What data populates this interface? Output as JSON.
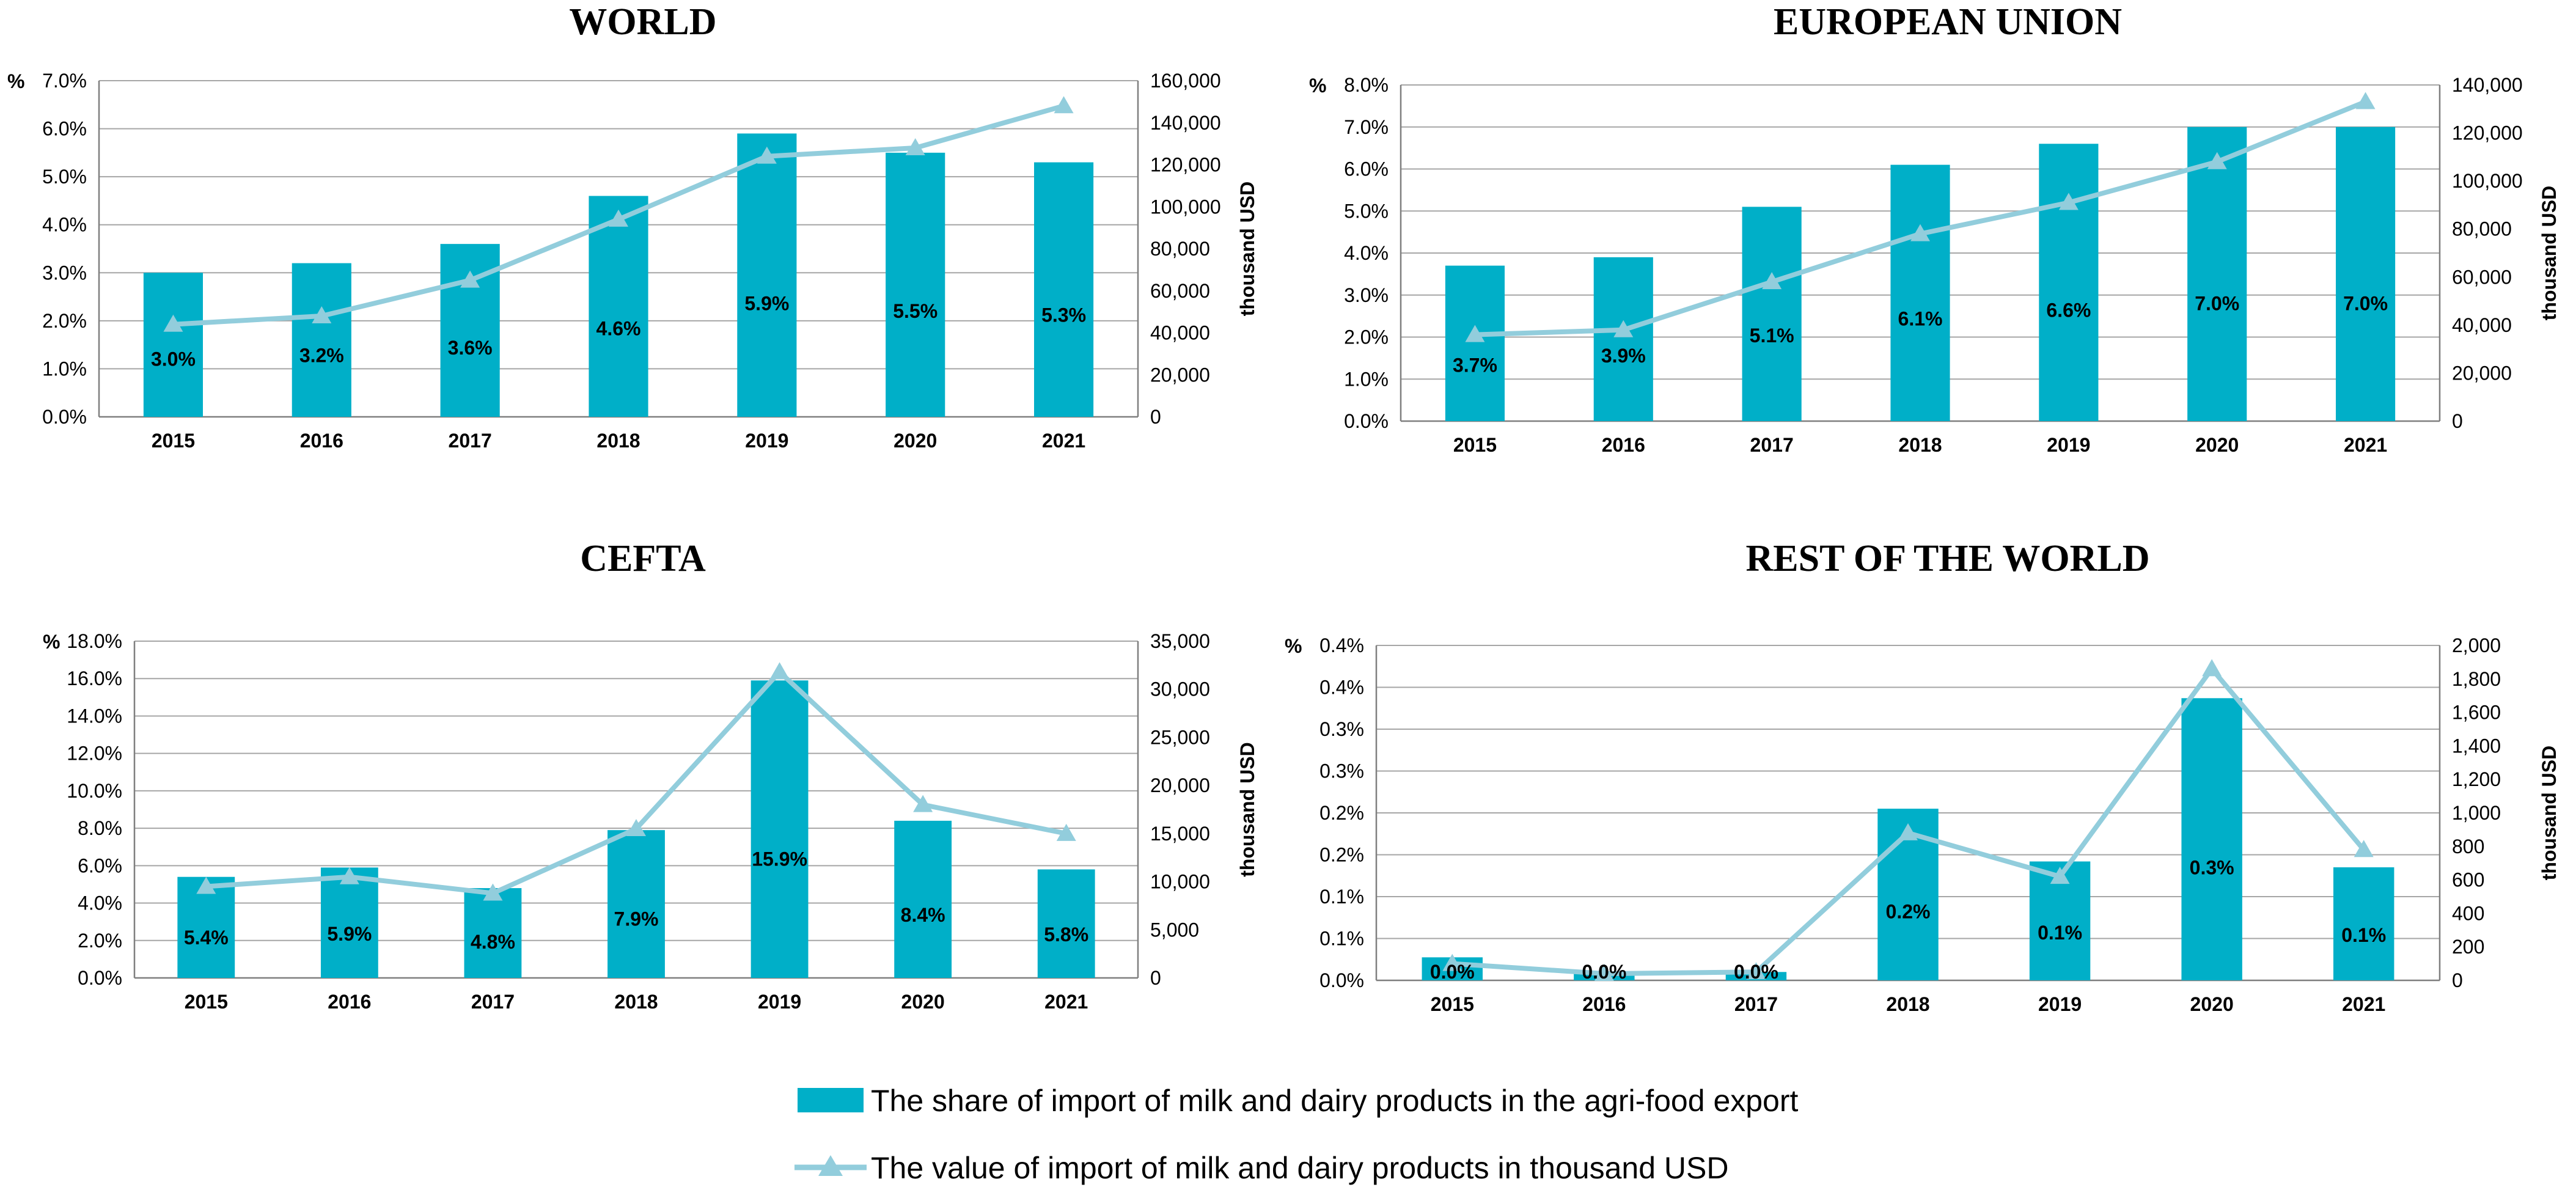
{
  "legend": {
    "bars_label": "The share of import of milk and dairy products in the agri-food export",
    "line_label": "The value of import of milk and dairy products in thousand USD"
  },
  "colors": {
    "bar": "#00AFC8",
    "line": "#92CDDC",
    "grid": "#A6A6A6",
    "axis": "#7F7F7F"
  },
  "chart_data": [
    {
      "type": "bar",
      "title": "WORLD",
      "categories": [
        "2015",
        "2016",
        "2017",
        "2018",
        "2019",
        "2020",
        "2021"
      ],
      "series": [
        {
          "name": "The share of import of milk and dairy products in the agri-food export",
          "axis": "left",
          "values": [
            3.0,
            3.2,
            3.6,
            4.6,
            5.9,
            5.5,
            5.3
          ],
          "labels": [
            "3.0%",
            "3.2%",
            "3.6%",
            "4.6%",
            "5.9%",
            "5.5%",
            "5.3%"
          ]
        },
        {
          "name": "The value of import of milk and dairy products in thousand USD",
          "type": "line",
          "axis": "right",
          "values": [
            44000,
            48000,
            65000,
            94000,
            124000,
            128000,
            148000
          ]
        }
      ],
      "ylabel_left": "%",
      "ylabel_right": "thousand USD",
      "ylim_left": [
        0,
        7
      ],
      "ylim_right": [
        0,
        160000
      ],
      "yticks_left": [
        "0.0%",
        "1.0%",
        "2.0%",
        "3.0%",
        "4.0%",
        "5.0%",
        "6.0%",
        "7.0%"
      ],
      "yticks_right": [
        "0",
        "20,000",
        "40,000",
        "60,000",
        "80,000",
        "100,000",
        "120,000",
        "140,000",
        "160,000"
      ],
      "grid": true
    },
    {
      "type": "bar",
      "title": "EUROPEAN UNION",
      "categories": [
        "2015",
        "2016",
        "2017",
        "2018",
        "2019",
        "2020",
        "2021"
      ],
      "series": [
        {
          "name": "The share of import of milk and dairy products in the agri-food export",
          "axis": "left",
          "values": [
            3.7,
            3.9,
            5.1,
            6.1,
            6.6,
            7.0,
            7.0
          ],
          "labels": [
            "3.7%",
            "3.9%",
            "5.1%",
            "6.1%",
            "6.6%",
            "7.0%",
            "7.0%"
          ]
        },
        {
          "name": "The value of import of milk and dairy products in thousand USD",
          "type": "line",
          "axis": "right",
          "values": [
            36000,
            38000,
            58000,
            78000,
            91000,
            108000,
            133000
          ]
        }
      ],
      "ylabel_left": "%",
      "ylabel_right": "thousand USD",
      "ylim_left": [
        0,
        8
      ],
      "ylim_right": [
        0,
        140000
      ],
      "yticks_left": [
        "0.0%",
        "1.0%",
        "2.0%",
        "3.0%",
        "4.0%",
        "5.0%",
        "6.0%",
        "7.0%",
        "8.0%"
      ],
      "yticks_right": [
        "0",
        "20,000",
        "40,000",
        "60,000",
        "80,000",
        "100,000",
        "120,000",
        "140,000"
      ],
      "grid": true
    },
    {
      "type": "bar",
      "title": "CEFTA",
      "categories": [
        "2015",
        "2016",
        "2017",
        "2018",
        "2019",
        "2020",
        "2021"
      ],
      "series": [
        {
          "name": "The share of import of milk and dairy products in the agri-food export",
          "axis": "left",
          "values": [
            5.4,
            5.9,
            4.8,
            7.9,
            15.9,
            8.4,
            5.8
          ],
          "labels": [
            "5.4%",
            "5.9%",
            "4.8%",
            "7.9%",
            "15.9%",
            "8.4%",
            "5.8%"
          ]
        },
        {
          "name": "The value of import of milk and dairy products in thousand USD",
          "type": "line",
          "axis": "right",
          "values": [
            9500,
            10500,
            8800,
            15500,
            31800,
            18000,
            15000
          ]
        }
      ],
      "ylabel_left": "%",
      "ylabel_right": "thousand USD",
      "ylim_left": [
        0,
        18
      ],
      "ylim_right": [
        0,
        35000
      ],
      "yticks_left": [
        "0.0%",
        "2.0%",
        "4.0%",
        "6.0%",
        "8.0%",
        "10.0%",
        "12.0%",
        "14.0%",
        "16.0%",
        "18.0%"
      ],
      "yticks_right": [
        "0",
        "5,000",
        "10,000",
        "15,000",
        "20,000",
        "25,000",
        "30,000",
        "35,000"
      ],
      "grid": true
    },
    {
      "type": "bar",
      "title": "REST OF THE WORLD",
      "categories": [
        "2015",
        "2016",
        "2017",
        "2018",
        "2019",
        "2020",
        "2021"
      ],
      "series": [
        {
          "name": "The share of import of milk and dairy products in the agri-food export",
          "axis": "left",
          "values": [
            0.0275,
            0.01,
            0.01,
            0.205,
            0.142,
            0.337,
            0.135
          ],
          "labels": [
            "0.0%",
            "0.0%",
            "0.0%",
            "0.2%",
            "0.1%",
            "0.3%",
            "0.1%"
          ]
        },
        {
          "name": "The value of import of milk and dairy products in thousand USD",
          "type": "line",
          "axis": "right",
          "values": [
            100,
            40,
            50,
            880,
            620,
            1860,
            780
          ]
        }
      ],
      "ylabel_left": "%",
      "ylabel_right": "thousand USD",
      "ylim_left": [
        0,
        0.4
      ],
      "ylim_right": [
        0,
        2000
      ],
      "yticks_left": [
        "0.0%",
        "0.1%",
        "0.1%",
        "0.2%",
        "0.2%",
        "0.3%",
        "0.3%",
        "0.4%",
        "0.4%"
      ],
      "yticks_right": [
        "0",
        "200",
        "400",
        "600",
        "800",
        "1,000",
        "1,200",
        "1,400",
        "1,600",
        "1,800",
        "2,000"
      ],
      "grid": true
    }
  ]
}
